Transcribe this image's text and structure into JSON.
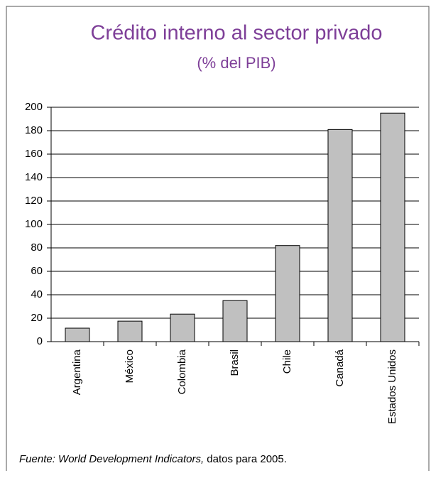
{
  "chart_data": {
    "type": "bar",
    "title": "Crédito interno al sector privado",
    "subtitle": "(% del PIB)",
    "categories": [
      "Argentina",
      "México",
      "Colombia",
      "Brasil",
      "Chile",
      "Canadá",
      "Estados Unidos"
    ],
    "values": [
      11.5,
      17.5,
      23.5,
      35,
      82,
      181,
      195
    ],
    "color": "#c0c0c0",
    "ylim": [
      0,
      200
    ],
    "yticks": [
      0,
      20,
      40,
      60,
      80,
      100,
      120,
      140,
      160,
      180,
      200
    ],
    "grid": true,
    "source_italic": "Fuente: World Development Indicators,",
    "source": "datos para 2005."
  }
}
